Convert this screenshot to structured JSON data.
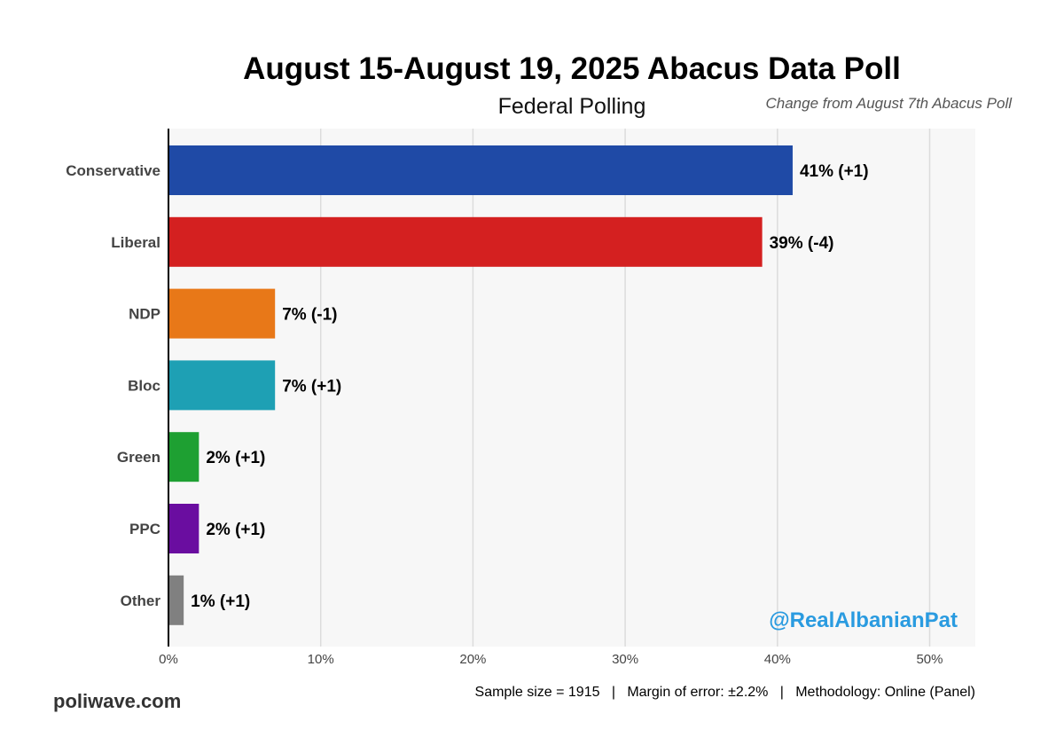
{
  "chart_data": {
    "type": "bar",
    "orientation": "horizontal",
    "title": "August 15-August 19, 2025 Abacus Data Poll",
    "subtitle": "Federal Polling",
    "change_note": "Change from August 7th Abacus Poll",
    "categories": [
      "Conservative",
      "Liberal",
      "NDP",
      "Bloc",
      "Green",
      "PPC",
      "Other"
    ],
    "values": [
      41,
      39,
      7,
      7,
      2,
      2,
      1
    ],
    "labels": [
      "41% (+1)",
      "39% (-4)",
      "7% (-1)",
      "7% (+1)",
      "2% (+1)",
      "2% (+1)",
      "1% (+1)"
    ],
    "colors": [
      "#1f4aa6",
      "#d42020",
      "#e87818",
      "#1ea0b4",
      "#1ea032",
      "#6a0da0",
      "#808080"
    ],
    "xlim": [
      0,
      53
    ],
    "x_ticks": [
      0,
      10,
      20,
      30,
      40,
      50
    ],
    "x_tick_labels": [
      "0%",
      "10%",
      "20%",
      "30%",
      "40%",
      "50%"
    ],
    "grid": true,
    "watermark": "@RealAlbanianPat",
    "watermark_color": "#2a9be0"
  },
  "footer": {
    "site": "poliwave.com",
    "methodology": "Sample size = 1915   |   Margin of error: ±2.2%   |   Methodology: Online (Panel)"
  }
}
